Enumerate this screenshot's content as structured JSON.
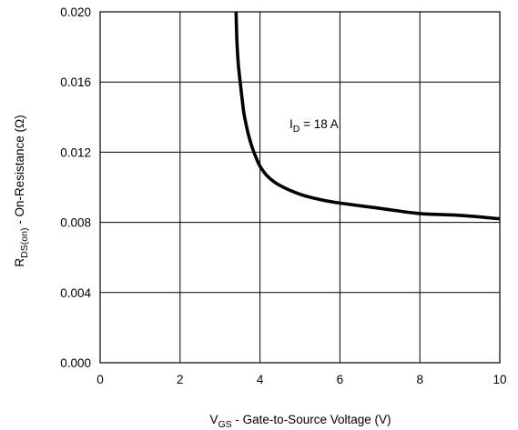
{
  "chart_data": {
    "type": "line",
    "xlabel": {
      "main": "V",
      "sub": "GS",
      "rest": " - Gate-to-Source Voltage (V)"
    },
    "ylabel": {
      "main": "R",
      "sub": "DS(on)",
      "rest": "  -  On-Resistance (Ω)"
    },
    "xlim": [
      0,
      10
    ],
    "ylim": [
      0.0,
      0.02
    ],
    "xticks": [
      0,
      2,
      4,
      6,
      8,
      10
    ],
    "xtick_labels": [
      "0",
      "2",
      "4",
      "6",
      "8",
      "10"
    ],
    "yticks": [
      0.0,
      0.004,
      0.008,
      0.012,
      0.016,
      0.02
    ],
    "ytick_labels": [
      "0.000",
      "0.004",
      "0.008",
      "0.012",
      "0.016",
      "0.020"
    ],
    "grid": true,
    "annotation": {
      "main": "I",
      "sub": "D",
      "rest": " = 18 A"
    },
    "series": [
      {
        "x": [
          3.4,
          3.42,
          3.45,
          3.5,
          3.55,
          3.6,
          3.7,
          3.8,
          3.9,
          4.0,
          4.2,
          4.5,
          5.0,
          5.5,
          6.0,
          7.0,
          8.0,
          9.0,
          10.0
        ],
        "y": [
          0.02,
          0.0185,
          0.0172,
          0.0161,
          0.0151,
          0.0142,
          0.0131,
          0.0123,
          0.0117,
          0.0112,
          0.0106,
          0.0101,
          0.0096,
          0.0093,
          0.0091,
          0.0088,
          0.0085,
          0.0084,
          0.0082
        ]
      }
    ]
  }
}
